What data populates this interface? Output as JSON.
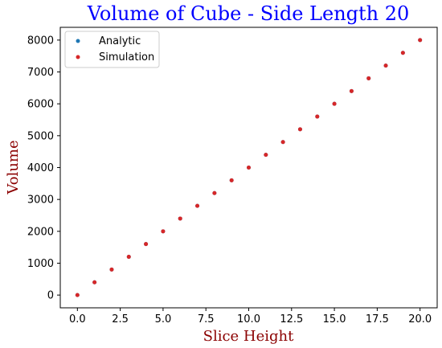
{
  "colors": {
    "title": "#0000ff",
    "axis_label": "#8b0000",
    "analytic": "#1f77b4",
    "simulation": "#d62728",
    "axes": "#000000"
  },
  "chart_data": {
    "type": "scatter",
    "title": "Volume of Cube - Side Length 20",
    "xlabel": "Slice Height",
    "ylabel": "Volume",
    "xlim": [
      -1.0,
      21.0
    ],
    "ylim": [
      -400,
      8400
    ],
    "xticks": [
      "0.0",
      "2.5",
      "5.0",
      "7.5",
      "10.0",
      "12.5",
      "15.0",
      "17.5",
      "20.0"
    ],
    "yticks": [
      "0",
      "1000",
      "2000",
      "3000",
      "4000",
      "5000",
      "6000",
      "7000",
      "8000"
    ],
    "legend_position": "upper-left",
    "grid": false,
    "series": [
      {
        "name": "Analytic",
        "color": "#1f77b4",
        "x": [
          0,
          1,
          2,
          3,
          4,
          5,
          6,
          7,
          8,
          9,
          10,
          11,
          12,
          13,
          14,
          15,
          16,
          17,
          18,
          19,
          20
        ],
        "values": [
          0,
          400,
          800,
          1200,
          1600,
          2000,
          2400,
          2800,
          3200,
          3600,
          4000,
          4400,
          4800,
          5200,
          5600,
          6000,
          6400,
          6800,
          7200,
          7600,
          8000
        ]
      },
      {
        "name": "Simulation",
        "color": "#d62728",
        "x": [
          0,
          1,
          2,
          3,
          4,
          5,
          6,
          7,
          8,
          9,
          10,
          11,
          12,
          13,
          14,
          15,
          16,
          17,
          18,
          19,
          20
        ],
        "values": [
          0,
          400,
          800,
          1200,
          1600,
          2000,
          2400,
          2800,
          3200,
          3600,
          4000,
          4400,
          4800,
          5200,
          5600,
          6000,
          6400,
          6800,
          7200,
          7600,
          8000
        ]
      }
    ]
  }
}
